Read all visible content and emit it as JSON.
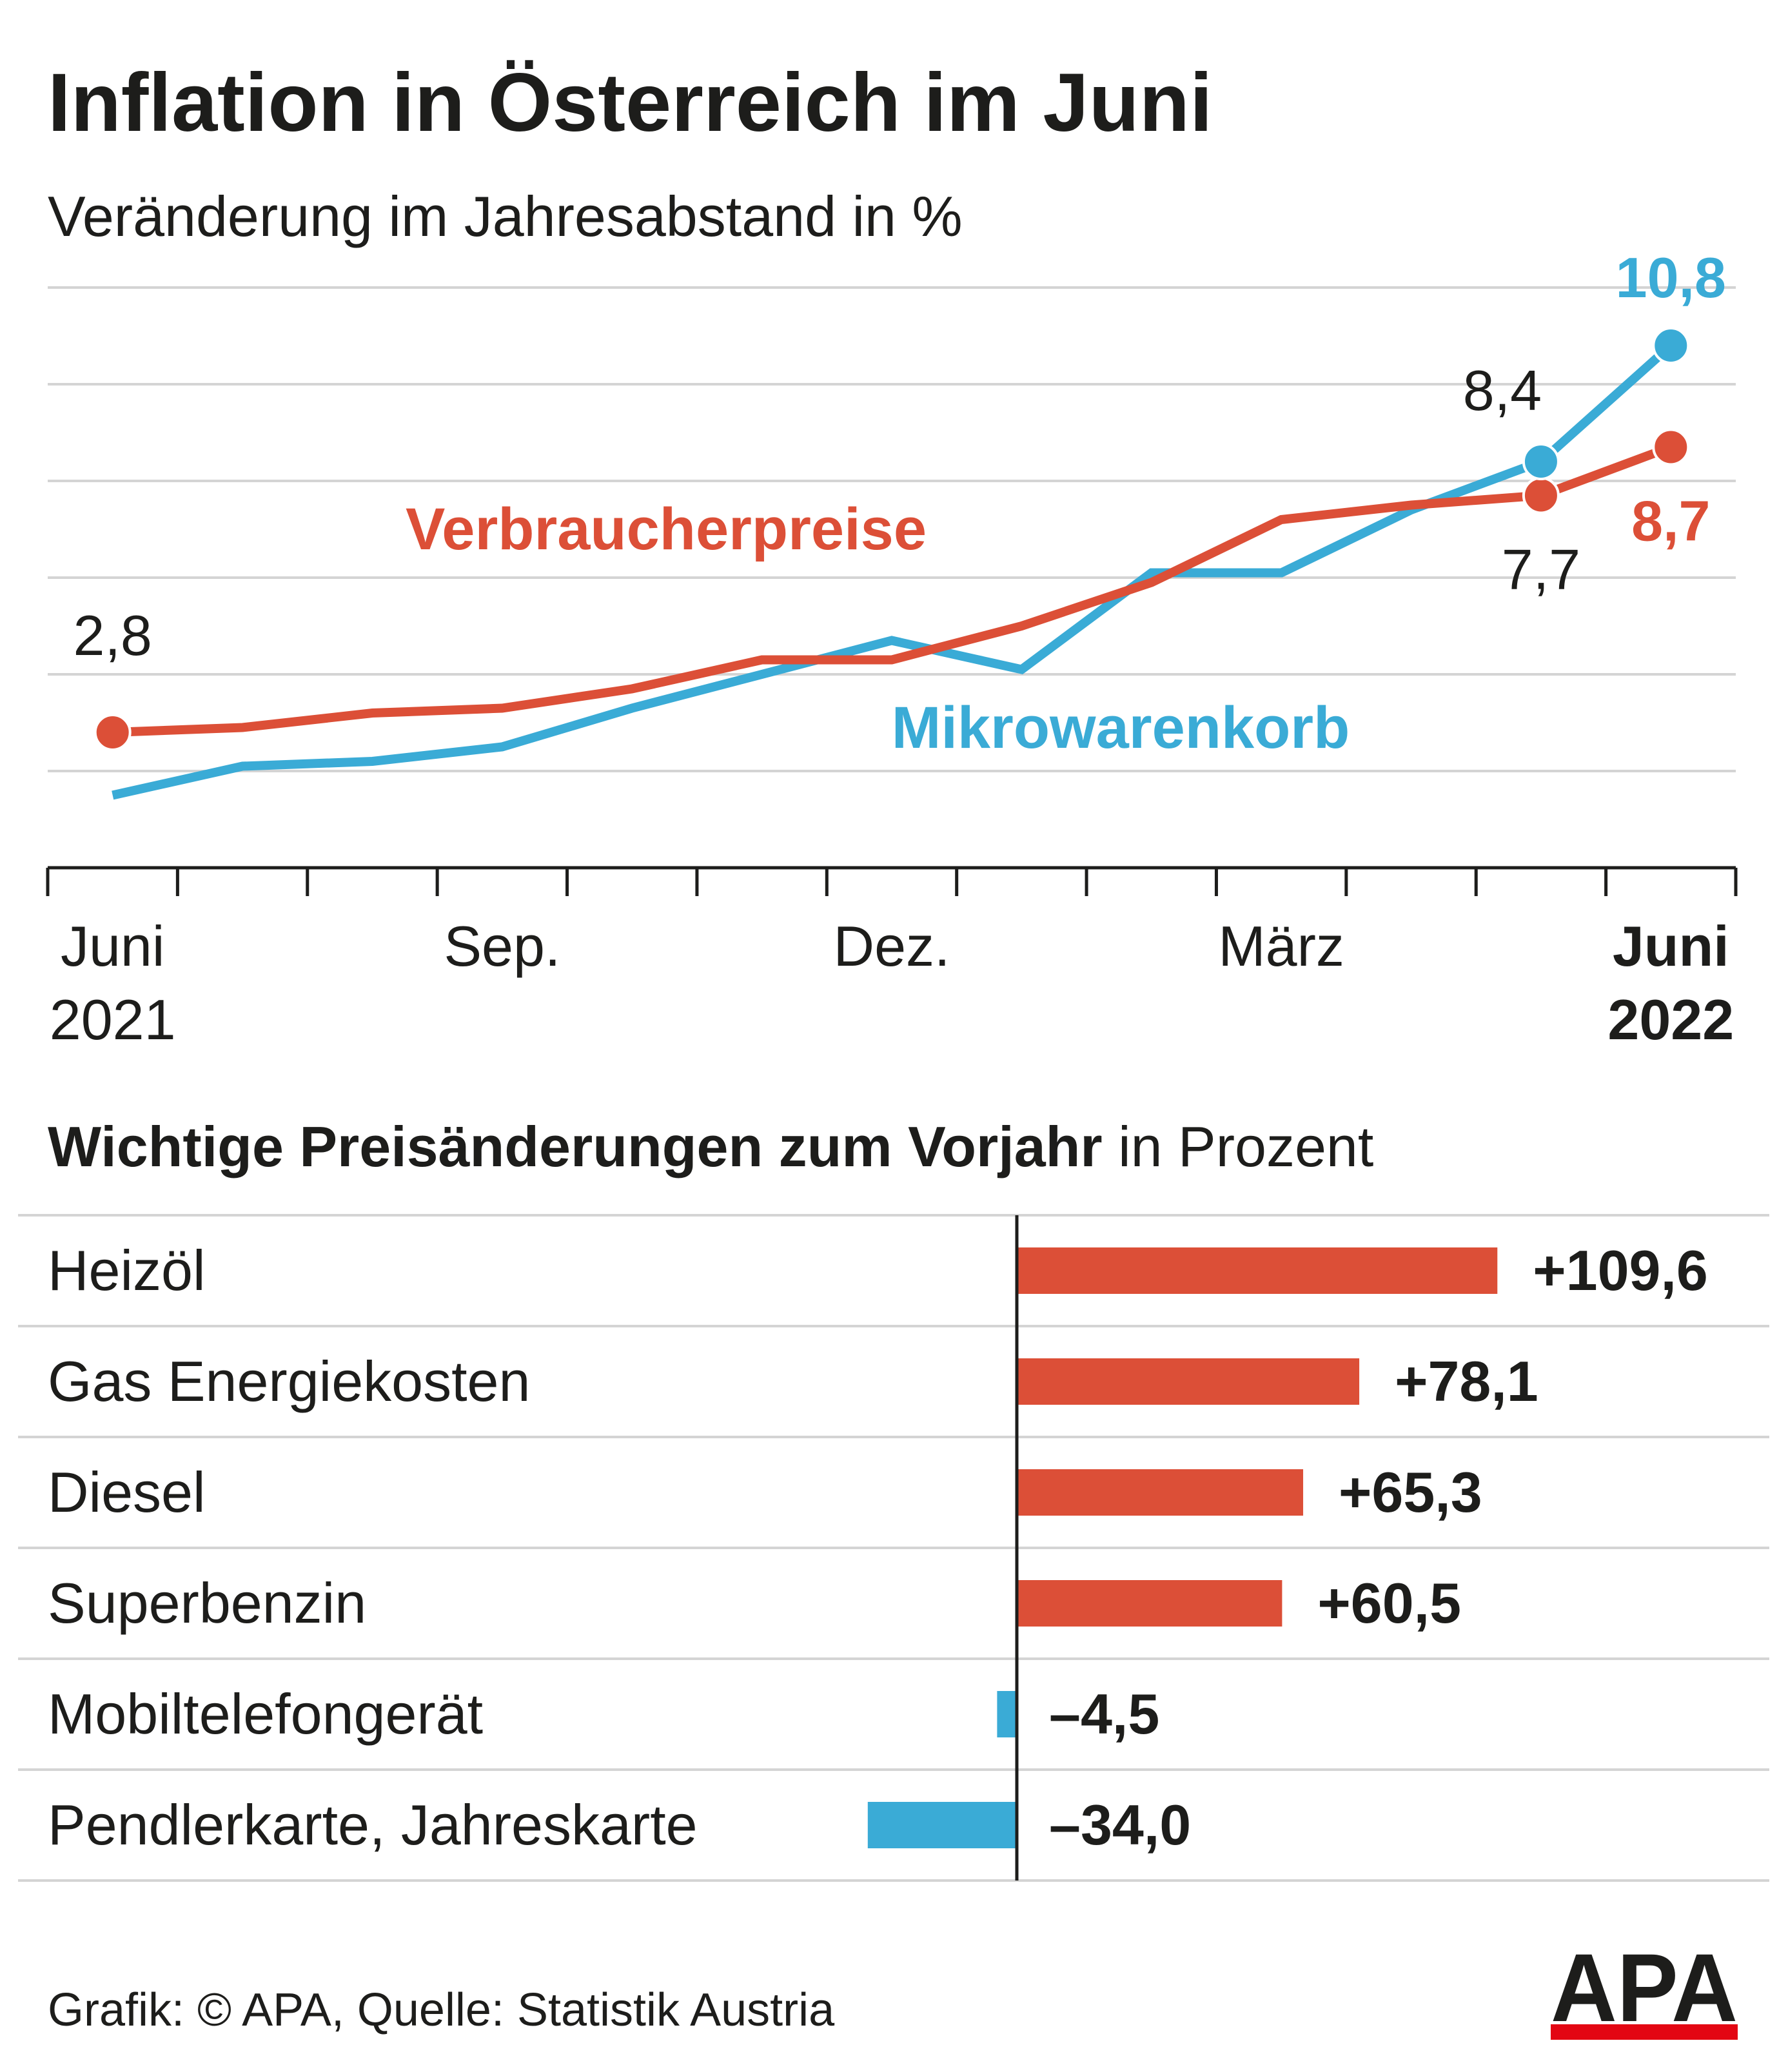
{
  "title": "Inflation in Österreich im Juni",
  "subtitle": "Veränderung im Jahresabstand in %",
  "colors": {
    "red": "#dc4f37",
    "blue": "#3aabd6",
    "text": "#1d1d1b",
    "grid": "#d4d4d4"
  },
  "chart_data": [
    {
      "type": "line",
      "title": "Inflation in Österreich im Juni",
      "subtitle": "Veränderung im Jahresabstand in %",
      "x": [
        "2021-06",
        "2021-07",
        "2021-08",
        "2021-09",
        "2021-10",
        "2021-11",
        "2021-12",
        "2022-01",
        "2022-02",
        "2022-03",
        "2022-04",
        "2022-05",
        "2022-06"
      ],
      "x_tick_labels": [
        {
          "x": "2021-06",
          "lines": [
            "Juni",
            "2021"
          ],
          "bold": false
        },
        {
          "x": "2021-09",
          "lines": [
            "Sep."
          ],
          "bold": false
        },
        {
          "x": "2021-12",
          "lines": [
            "Dez."
          ],
          "bold": false
        },
        {
          "x": "2022-03",
          "lines": [
            "März"
          ],
          "bold": false
        },
        {
          "x": "2022-06",
          "lines": [
            "Juni",
            "2022"
          ],
          "bold": true
        }
      ],
      "ylim": [
        0,
        12
      ],
      "y_gridlines": [
        2,
        4,
        6,
        8,
        10,
        12
      ],
      "y_ticks_labeled": false,
      "series": [
        {
          "name": "Verbraucherpreise",
          "color": "#dc4f37",
          "values": [
            2.8,
            2.9,
            3.2,
            3.3,
            3.7,
            4.3,
            4.3,
            5.0,
            5.9,
            7.2,
            7.5,
            7.7,
            8.7
          ]
        },
        {
          "name": "Mikrowarenkorb",
          "color": "#3aabd6",
          "values": [
            1.5,
            2.1,
            2.2,
            2.5,
            3.3,
            4.0,
            4.7,
            4.1,
            6.1,
            6.1,
            7.4,
            8.4,
            10.8
          ]
        }
      ],
      "annotations": [
        {
          "text": "2,8",
          "series": "Verbraucherpreise",
          "x": "2021-06"
        },
        {
          "text": "7,7",
          "series": "Verbraucherpreise",
          "x": "2022-05"
        },
        {
          "text": "8,7",
          "series": "Verbraucherpreise",
          "x": "2022-06"
        },
        {
          "text": "8,4",
          "series": "Mikrowarenkorb",
          "x": "2022-05"
        },
        {
          "text": "10,8",
          "series": "Mikrowarenkorb",
          "x": "2022-06"
        }
      ]
    },
    {
      "type": "bar",
      "orientation": "horizontal",
      "title": "Wichtige Preisänderungen zum Vorjahr",
      "title_suffix": "in Prozent",
      "categories": [
        "Heizöl",
        "Gas Energiekosten",
        "Diesel",
        "Superbenzin",
        "Mobiltelefongerät",
        "Pendlerkarte, Jahreskarte"
      ],
      "values": [
        109.6,
        78.1,
        65.3,
        60.5,
        -4.5,
        -34.0
      ],
      "value_labels": [
        "+109,6",
        "+78,1",
        "+65,3",
        "+60,5",
        "–4,5",
        "–34,0"
      ],
      "positive_color": "#dc4f37",
      "negative_color": "#3aabd6"
    }
  ],
  "footer": "Grafik: © APA, Quelle: Statistik Austria",
  "logo_text": "APA"
}
